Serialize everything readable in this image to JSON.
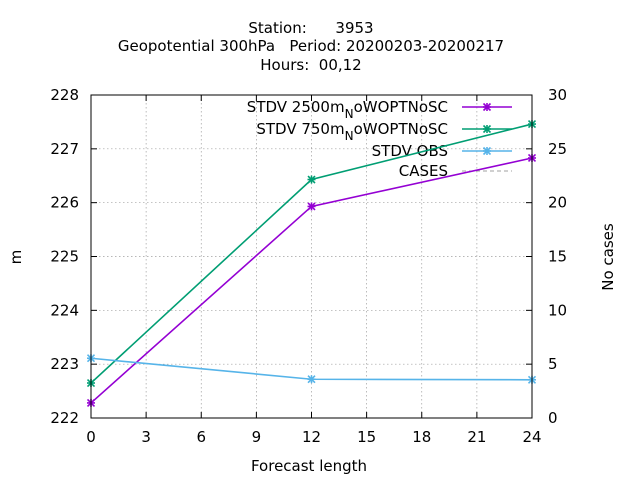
{
  "chart_data": {
    "type": "line",
    "title_lines": [
      "Station:      3953",
      "Geopotential 300hPa   Period: 20200203-20200217",
      "Hours:  00,12"
    ],
    "xlabel": "Forecast length",
    "ylabel": "m",
    "y2label": "No cases",
    "xlim": [
      0,
      24
    ],
    "ylim": [
      222,
      228
    ],
    "y2lim": [
      0,
      30
    ],
    "xticks": [
      "0",
      "3",
      "6",
      "9",
      "12",
      "15",
      "18",
      "21",
      "24"
    ],
    "yticks": [
      "222",
      "223",
      "224",
      "225",
      "226",
      "227",
      "228"
    ],
    "y2ticks": [
      "0",
      "5",
      "10",
      "15",
      "20",
      "25",
      "30"
    ],
    "grid": true,
    "legend_position": "top-right",
    "series": [
      {
        "label_main": "STDV 2500m",
        "label_sub": "N",
        "label_tail": "oWOPTNoSC",
        "color": "#9400d3",
        "axis": "y1",
        "x": [
          0,
          12,
          24
        ],
        "y": [
          222.28,
          225.93,
          226.83
        ]
      },
      {
        "label_main": "STDV 750m",
        "label_sub": "N",
        "label_tail": "oWOPTNoSC",
        "color": "#009e73",
        "axis": "y1",
        "x": [
          0,
          12,
          24
        ],
        "y": [
          222.65,
          226.43,
          227.46
        ]
      },
      {
        "label_main": "STDV OBS",
        "label_sub": "",
        "label_tail": "",
        "color": "#56b4e9",
        "axis": "y1",
        "x": [
          0,
          12,
          24
        ],
        "y": [
          223.11,
          222.72,
          222.71
        ]
      },
      {
        "label_main": "CASES",
        "label_sub": "",
        "label_tail": "",
        "color": "#a0a0a0",
        "axis": "y2",
        "dashed": true,
        "x": [
          0,
          12,
          24
        ],
        "y": [
          30,
          30,
          30
        ]
      }
    ]
  }
}
